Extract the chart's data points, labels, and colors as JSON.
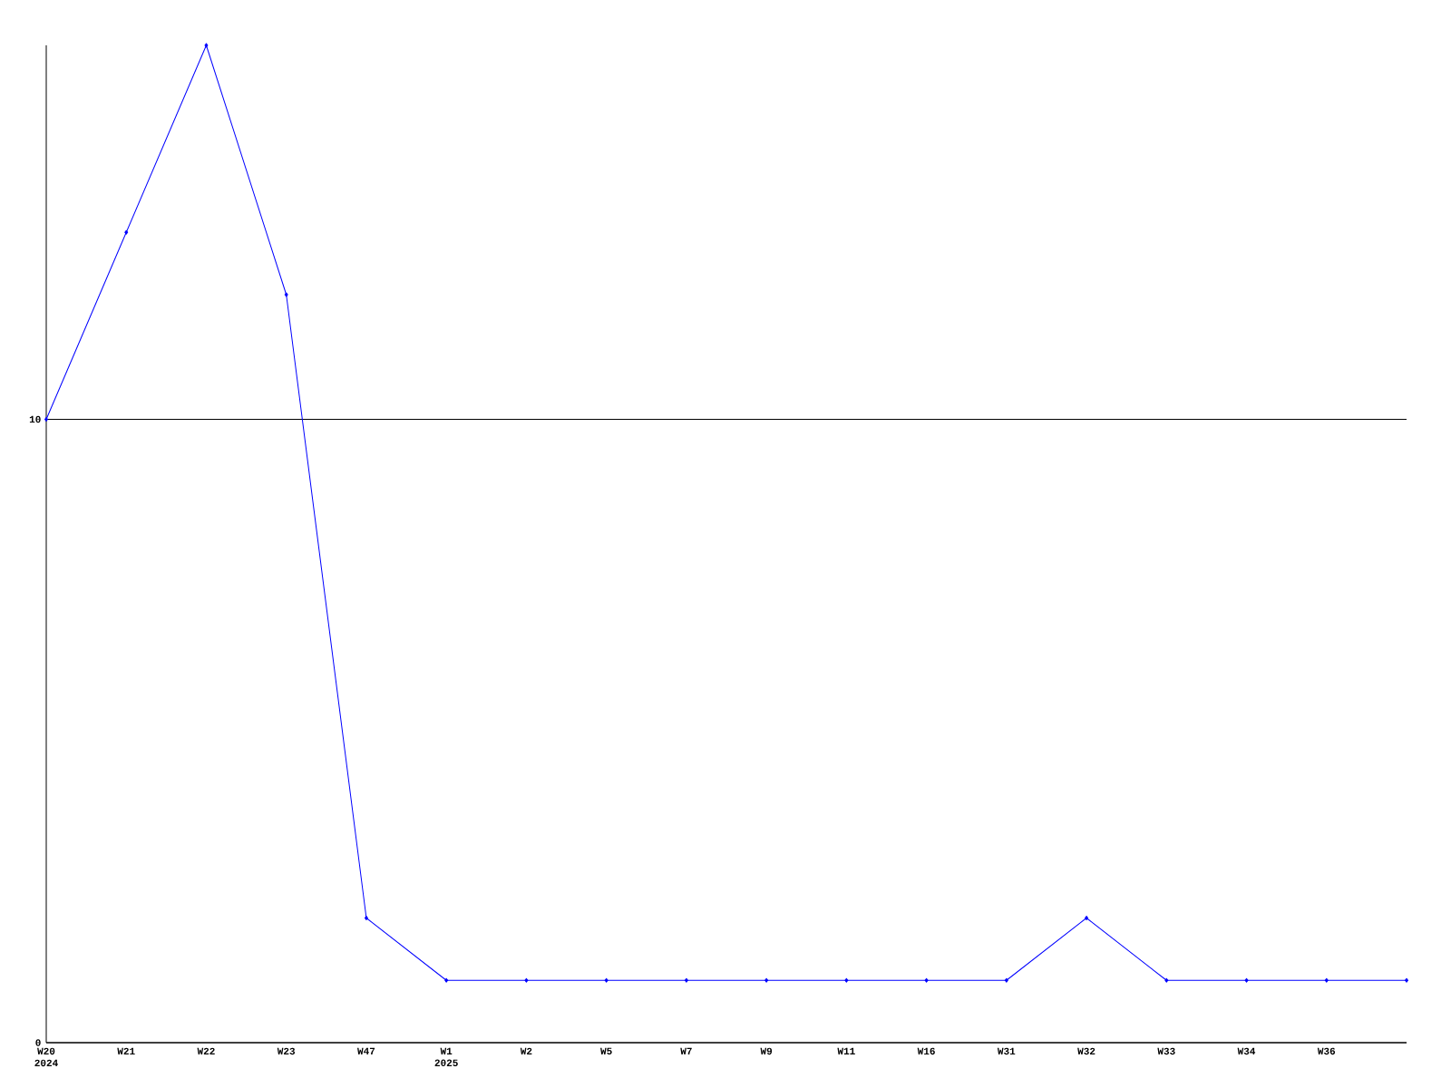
{
  "chart_data": {
    "type": "line",
    "categories": [
      "W20 2024",
      "W21",
      "W22",
      "W23",
      "W47",
      "W1 2025",
      "W2",
      "W5",
      "W7",
      "W9",
      "W11",
      "W16",
      "W31",
      "W32",
      "W33",
      "W34",
      "W36",
      null
    ],
    "series": [
      {
        "color": "#0000ff",
        "values": [
          10,
          13,
          16,
          12,
          2,
          1,
          1,
          1,
          1,
          1,
          1,
          1,
          1,
          2,
          1,
          1,
          1,
          1
        ]
      }
    ],
    "ylim": [
      0,
      16
    ],
    "yticks": [
      0,
      10
    ],
    "grid": "y",
    "marker": "diamond",
    "line_style": "solid"
  }
}
